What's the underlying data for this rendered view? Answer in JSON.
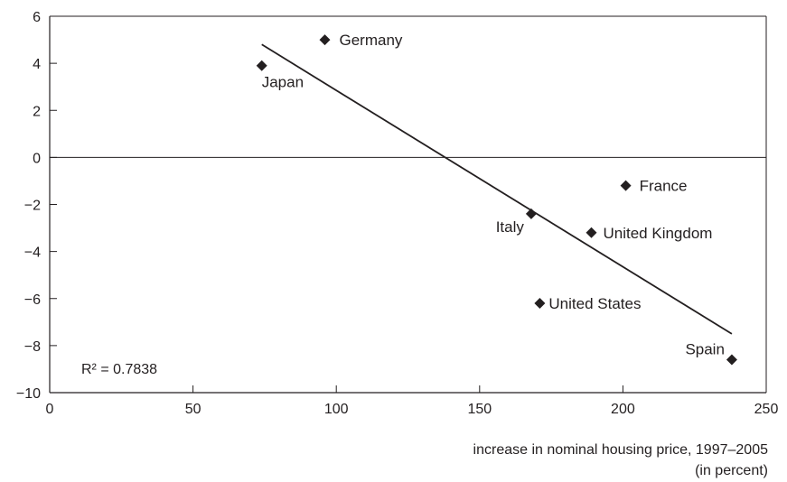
{
  "chart_data": {
    "type": "scatter",
    "title": "",
    "xlabel": "increase in nominal housing price, 1997–2005",
    "xlabel_unit": "(in percent)",
    "ylabel": "",
    "xlim": [
      0,
      250
    ],
    "ylim": [
      -10,
      6
    ],
    "x_ticks": [
      0,
      50,
      100,
      150,
      200,
      250
    ],
    "y_ticks": [
      6,
      4,
      2,
      0,
      -2,
      -4,
      -6,
      -8,
      -10
    ],
    "x_tick_labels": [
      "0",
      "50",
      "100",
      "150",
      "200",
      "250"
    ],
    "y_tick_labels": [
      "6",
      "4",
      "2",
      "0",
      "−2",
      "−4",
      "−6",
      "−8",
      "−10"
    ],
    "grid": false,
    "zero_line": true,
    "marker": "diamond",
    "points": [
      {
        "label": "Japan",
        "x": 74,
        "y": 3.9
      },
      {
        "label": "Germany",
        "x": 96,
        "y": 5.0
      },
      {
        "label": "Italy",
        "x": 168,
        "y": -2.4
      },
      {
        "label": "France",
        "x": 201,
        "y": -1.2
      },
      {
        "label": "United Kingdom",
        "x": 189,
        "y": -3.2
      },
      {
        "label": "United States",
        "x": 171,
        "y": -6.2
      },
      {
        "label": "Spain",
        "x": 238,
        "y": -8.6
      }
    ],
    "trendline": {
      "x": [
        74,
        238
      ],
      "y": [
        4.8,
        -7.5
      ]
    },
    "annotation": {
      "text": "R² = 0.7838"
    }
  }
}
